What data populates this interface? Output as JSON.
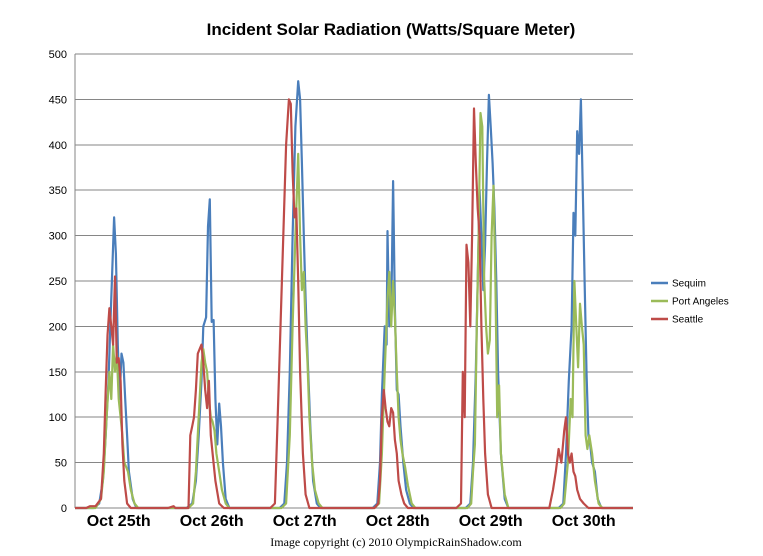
{
  "chart_data": {
    "type": "line",
    "title": "Incident Solar Radiation (Watts/Square Meter)",
    "ylim": [
      0,
      500
    ],
    "yticks": [
      0,
      50,
      100,
      150,
      200,
      250,
      300,
      350,
      400,
      450,
      500
    ],
    "xlim": [
      0,
      6
    ],
    "x_tick_labels": [
      "Oct 25th",
      "Oct 26th",
      "Oct 27th",
      "Oct 28th",
      "Oct 29th",
      "Oct 30th"
    ],
    "grid": true,
    "legend_position": "right",
    "footer": "Image copyright (c) 2010 OlympicRainShadow.com",
    "series": [
      {
        "name": "Sequim",
        "color": "#4a7ebb",
        "points": [
          [
            0.0,
            0
          ],
          [
            0.2,
            0
          ],
          [
            0.26,
            5
          ],
          [
            0.3,
            30
          ],
          [
            0.33,
            80
          ],
          [
            0.36,
            140
          ],
          [
            0.38,
            200
          ],
          [
            0.4,
            260
          ],
          [
            0.42,
            320
          ],
          [
            0.44,
            280
          ],
          [
            0.46,
            180
          ],
          [
            0.48,
            120
          ],
          [
            0.5,
            170
          ],
          [
            0.52,
            160
          ],
          [
            0.54,
            120
          ],
          [
            0.56,
            80
          ],
          [
            0.58,
            40
          ],
          [
            0.62,
            10
          ],
          [
            0.66,
            0
          ],
          [
            1.2,
            0
          ],
          [
            1.26,
            5
          ],
          [
            1.3,
            30
          ],
          [
            1.33,
            80
          ],
          [
            1.36,
            140
          ],
          [
            1.38,
            200
          ],
          [
            1.41,
            210
          ],
          [
            1.43,
            310
          ],
          [
            1.45,
            340
          ],
          [
            1.47,
            205
          ],
          [
            1.49,
            207
          ],
          [
            1.51,
            120
          ],
          [
            1.53,
            70
          ],
          [
            1.55,
            115
          ],
          [
            1.57,
            90
          ],
          [
            1.59,
            50
          ],
          [
            1.62,
            10
          ],
          [
            1.66,
            0
          ],
          [
            2.2,
            0
          ],
          [
            2.25,
            5
          ],
          [
            2.28,
            50
          ],
          [
            2.31,
            150
          ],
          [
            2.34,
            300
          ],
          [
            2.37,
            420
          ],
          [
            2.4,
            470
          ],
          [
            2.42,
            450
          ],
          [
            2.44,
            380
          ],
          [
            2.46,
            300
          ],
          [
            2.48,
            230
          ],
          [
            2.5,
            170
          ],
          [
            2.53,
            90
          ],
          [
            2.56,
            30
          ],
          [
            2.6,
            5
          ],
          [
            2.64,
            0
          ],
          [
            3.2,
            0
          ],
          [
            3.25,
            5
          ],
          [
            3.28,
            50
          ],
          [
            3.3,
            125
          ],
          [
            3.33,
            200
          ],
          [
            3.35,
            180
          ],
          [
            3.36,
            305
          ],
          [
            3.38,
            200
          ],
          [
            3.4,
            210
          ],
          [
            3.42,
            360
          ],
          [
            3.44,
            220
          ],
          [
            3.46,
            130
          ],
          [
            3.48,
            125
          ],
          [
            3.5,
            90
          ],
          [
            3.53,
            50
          ],
          [
            3.56,
            20
          ],
          [
            3.6,
            5
          ],
          [
            3.64,
            0
          ],
          [
            4.2,
            0
          ],
          [
            4.25,
            5
          ],
          [
            4.28,
            50
          ],
          [
            4.31,
            150
          ],
          [
            4.33,
            250
          ],
          [
            4.35,
            350
          ],
          [
            4.37,
            300
          ],
          [
            4.39,
            240
          ],
          [
            4.41,
            290
          ],
          [
            4.43,
            380
          ],
          [
            4.45,
            455
          ],
          [
            4.47,
            420
          ],
          [
            4.49,
            380
          ],
          [
            4.51,
            330
          ],
          [
            4.53,
            250
          ],
          [
            4.55,
            150
          ],
          [
            4.58,
            60
          ],
          [
            4.62,
            10
          ],
          [
            4.66,
            0
          ],
          [
            5.2,
            0
          ],
          [
            5.25,
            5
          ],
          [
            5.28,
            60
          ],
          [
            5.31,
            140
          ],
          [
            5.34,
            200
          ],
          [
            5.36,
            325
          ],
          [
            5.38,
            300
          ],
          [
            5.4,
            415
          ],
          [
            5.42,
            390
          ],
          [
            5.44,
            450
          ],
          [
            5.46,
            350
          ],
          [
            5.48,
            250
          ],
          [
            5.5,
            150
          ],
          [
            5.52,
            80
          ],
          [
            5.54,
            70
          ],
          [
            5.56,
            50
          ],
          [
            5.59,
            40
          ],
          [
            5.62,
            10
          ],
          [
            5.66,
            0
          ],
          [
            6.0,
            0
          ]
        ]
      },
      {
        "name": "Port Angeles",
        "color": "#9bbb59",
        "points": [
          [
            0.0,
            0
          ],
          [
            0.22,
            0
          ],
          [
            0.28,
            10
          ],
          [
            0.31,
            40
          ],
          [
            0.34,
            100
          ],
          [
            0.37,
            150
          ],
          [
            0.39,
            120
          ],
          [
            0.41,
            180
          ],
          [
            0.43,
            150
          ],
          [
            0.45,
            170
          ],
          [
            0.47,
            120
          ],
          [
            0.49,
            100
          ],
          [
            0.51,
            80
          ],
          [
            0.53,
            50
          ],
          [
            0.55,
            45
          ],
          [
            0.57,
            40
          ],
          [
            0.6,
            20
          ],
          [
            0.64,
            5
          ],
          [
            0.68,
            0
          ],
          [
            1.22,
            0
          ],
          [
            1.27,
            5
          ],
          [
            1.3,
            40
          ],
          [
            1.33,
            100
          ],
          [
            1.36,
            160
          ],
          [
            1.38,
            175
          ],
          [
            1.4,
            160
          ],
          [
            1.42,
            150
          ],
          [
            1.44,
            120
          ],
          [
            1.46,
            100
          ],
          [
            1.48,
            95
          ],
          [
            1.5,
            85
          ],
          [
            1.52,
            60
          ],
          [
            1.55,
            40
          ],
          [
            1.58,
            20
          ],
          [
            1.62,
            5
          ],
          [
            1.66,
            0
          ],
          [
            2.22,
            0
          ],
          [
            2.27,
            5
          ],
          [
            2.31,
            80
          ],
          [
            2.34,
            200
          ],
          [
            2.37,
            300
          ],
          [
            2.4,
            390
          ],
          [
            2.42,
            300
          ],
          [
            2.44,
            240
          ],
          [
            2.46,
            260
          ],
          [
            2.48,
            200
          ],
          [
            2.5,
            160
          ],
          [
            2.52,
            100
          ],
          [
            2.55,
            50
          ],
          [
            2.58,
            20
          ],
          [
            2.62,
            5
          ],
          [
            2.66,
            0
          ],
          [
            3.22,
            0
          ],
          [
            3.27,
            5
          ],
          [
            3.3,
            60
          ],
          [
            3.33,
            150
          ],
          [
            3.36,
            230
          ],
          [
            3.38,
            260
          ],
          [
            3.4,
            200
          ],
          [
            3.42,
            250
          ],
          [
            3.44,
            210
          ],
          [
            3.46,
            150
          ],
          [
            3.48,
            100
          ],
          [
            3.5,
            75
          ],
          [
            3.52,
            60
          ],
          [
            3.55,
            45
          ],
          [
            3.58,
            25
          ],
          [
            3.62,
            5
          ],
          [
            3.66,
            0
          ],
          [
            4.22,
            0
          ],
          [
            4.26,
            5
          ],
          [
            4.28,
            40
          ],
          [
            4.3,
            70
          ],
          [
            4.32,
            200
          ],
          [
            4.34,
            300
          ],
          [
            4.36,
            435
          ],
          [
            4.38,
            420
          ],
          [
            4.4,
            250
          ],
          [
            4.42,
            200
          ],
          [
            4.44,
            170
          ],
          [
            4.46,
            185
          ],
          [
            4.48,
            300
          ],
          [
            4.5,
            355
          ],
          [
            4.52,
            250
          ],
          [
            4.54,
            100
          ],
          [
            4.56,
            135
          ],
          [
            4.58,
            60
          ],
          [
            4.62,
            15
          ],
          [
            4.66,
            0
          ],
          [
            5.22,
            0
          ],
          [
            5.26,
            5
          ],
          [
            5.3,
            50
          ],
          [
            5.33,
            120
          ],
          [
            5.35,
            100
          ],
          [
            5.37,
            250
          ],
          [
            5.39,
            200
          ],
          [
            5.41,
            155
          ],
          [
            5.43,
            225
          ],
          [
            5.45,
            200
          ],
          [
            5.47,
            180
          ],
          [
            5.49,
            80
          ],
          [
            5.51,
            65
          ],
          [
            5.53,
            80
          ],
          [
            5.56,
            60
          ],
          [
            5.59,
            30
          ],
          [
            5.63,
            5
          ],
          [
            5.67,
            0
          ],
          [
            6.0,
            0
          ]
        ]
      },
      {
        "name": "Seattle",
        "color": "#be4b48",
        "points": [
          [
            0.0,
            0
          ],
          [
            0.12,
            0
          ],
          [
            0.16,
            2
          ],
          [
            0.22,
            2
          ],
          [
            0.28,
            10
          ],
          [
            0.31,
            60
          ],
          [
            0.33,
            130
          ],
          [
            0.35,
            190
          ],
          [
            0.37,
            220
          ],
          [
            0.39,
            200
          ],
          [
            0.41,
            180
          ],
          [
            0.43,
            255
          ],
          [
            0.45,
            160
          ],
          [
            0.47,
            165
          ],
          [
            0.49,
            140
          ],
          [
            0.51,
            70
          ],
          [
            0.53,
            30
          ],
          [
            0.56,
            5
          ],
          [
            0.6,
            0
          ],
          [
            1.0,
            0
          ],
          [
            1.06,
            2
          ],
          [
            1.08,
            0
          ],
          [
            1.22,
            0
          ],
          [
            1.24,
            80
          ],
          [
            1.26,
            90
          ],
          [
            1.28,
            100
          ],
          [
            1.3,
            130
          ],
          [
            1.32,
            170
          ],
          [
            1.34,
            175
          ],
          [
            1.36,
            180
          ],
          [
            1.38,
            160
          ],
          [
            1.4,
            130
          ],
          [
            1.42,
            110
          ],
          [
            1.44,
            140
          ],
          [
            1.46,
            80
          ],
          [
            1.48,
            60
          ],
          [
            1.51,
            30
          ],
          [
            1.55,
            5
          ],
          [
            1.6,
            0
          ],
          [
            2.1,
            0
          ],
          [
            2.15,
            5
          ],
          [
            2.18,
            100
          ],
          [
            2.21,
            200
          ],
          [
            2.24,
            300
          ],
          [
            2.27,
            400
          ],
          [
            2.3,
            450
          ],
          [
            2.32,
            445
          ],
          [
            2.34,
            370
          ],
          [
            2.36,
            320
          ],
          [
            2.38,
            330
          ],
          [
            2.4,
            250
          ],
          [
            2.42,
            150
          ],
          [
            2.45,
            60
          ],
          [
            2.48,
            15
          ],
          [
            2.52,
            0
          ],
          [
            3.22,
            0
          ],
          [
            3.26,
            5
          ],
          [
            3.28,
            30
          ],
          [
            3.3,
            100
          ],
          [
            3.32,
            130
          ],
          [
            3.34,
            110
          ],
          [
            3.36,
            95
          ],
          [
            3.38,
            90
          ],
          [
            3.4,
            110
          ],
          [
            3.42,
            105
          ],
          [
            3.44,
            75
          ],
          [
            3.46,
            60
          ],
          [
            3.48,
            30
          ],
          [
            3.51,
            15
          ],
          [
            3.54,
            5
          ],
          [
            3.58,
            0
          ],
          [
            4.1,
            0
          ],
          [
            4.15,
            5
          ],
          [
            4.17,
            150
          ],
          [
            4.19,
            100
          ],
          [
            4.21,
            290
          ],
          [
            4.23,
            270
          ],
          [
            4.25,
            200
          ],
          [
            4.27,
            300
          ],
          [
            4.29,
            440
          ],
          [
            4.31,
            380
          ],
          [
            4.33,
            330
          ],
          [
            4.35,
            300
          ],
          [
            4.37,
            200
          ],
          [
            4.39,
            120
          ],
          [
            4.41,
            60
          ],
          [
            4.44,
            15
          ],
          [
            4.48,
            0
          ],
          [
            5.1,
            0
          ],
          [
            5.14,
            20
          ],
          [
            5.17,
            40
          ],
          [
            5.2,
            65
          ],
          [
            5.23,
            50
          ],
          [
            5.26,
            85
          ],
          [
            5.28,
            100
          ],
          [
            5.3,
            60
          ],
          [
            5.32,
            50
          ],
          [
            5.34,
            60
          ],
          [
            5.36,
            40
          ],
          [
            5.38,
            35
          ],
          [
            5.4,
            20
          ],
          [
            5.43,
            10
          ],
          [
            5.47,
            5
          ],
          [
            5.52,
            0
          ],
          [
            6.0,
            0
          ]
        ]
      }
    ]
  }
}
